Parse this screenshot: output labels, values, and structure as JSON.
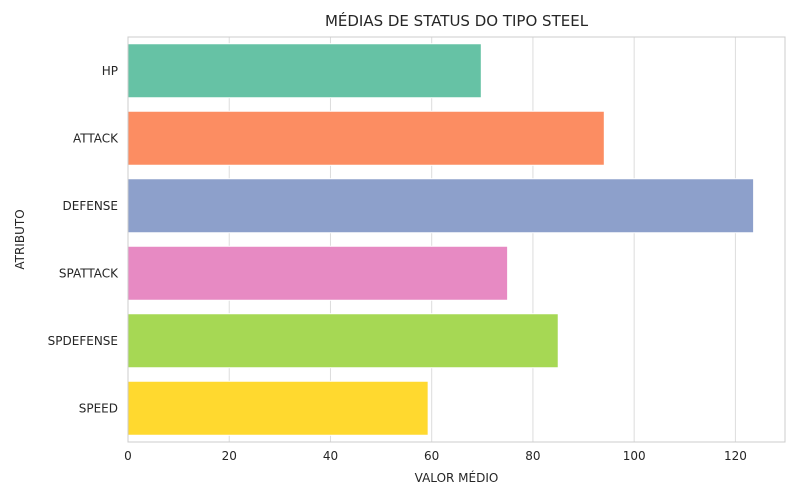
{
  "chart_data": {
    "type": "bar",
    "orientation": "horizontal",
    "title": "MÉDIAS DE STATUS DO TIPO STEEL",
    "xlabel": "VALOR MÉDIO",
    "ylabel": "ATRIBUTO",
    "categories": [
      "HP",
      "ATTACK",
      "DEFENSE",
      "SPATTACK",
      "SPDEFENSE",
      "SPEED"
    ],
    "values": [
      69.8,
      94.1,
      123.6,
      75.0,
      85.0,
      59.3
    ],
    "colors": [
      "#66c2a5",
      "#fc8d62",
      "#8da0cb",
      "#e78ac3",
      "#a6d854",
      "#ffd92f"
    ],
    "xlim": [
      0,
      129.8
    ],
    "xticks": [
      0,
      20,
      40,
      60,
      80,
      100,
      120
    ],
    "grid": "vertical",
    "legend": "none"
  }
}
